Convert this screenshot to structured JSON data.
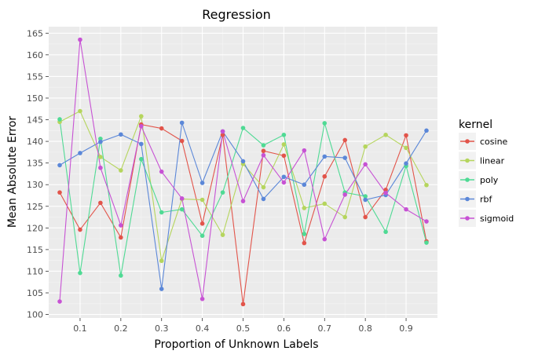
{
  "chart_data": {
    "type": "line",
    "title": "Regression",
    "xlabel": "Proportion of Unknown Labels",
    "ylabel": "Mean Absolute Error",
    "x": [
      0.05,
      0.1,
      0.15,
      0.2,
      0.25,
      0.3,
      0.35,
      0.4,
      0.45,
      0.5,
      0.55,
      0.6,
      0.65,
      0.7,
      0.75,
      0.8,
      0.85,
      0.9,
      0.95
    ],
    "x_ticks": [
      "0.1",
      "0.2",
      "0.3",
      "0.4",
      "0.5",
      "0.6",
      "0.7",
      "0.8",
      "0.9"
    ],
    "y_ticks": [
      "100",
      "105",
      "110",
      "115",
      "120",
      "125",
      "130",
      "135",
      "140",
      "145",
      "150",
      "155",
      "160",
      "165"
    ],
    "xlim": [
      0.023,
      0.977
    ],
    "ylim": [
      99.2,
      166.5
    ],
    "grid": true,
    "legend": {
      "title": "kernel",
      "position": "right"
    },
    "series": [
      {
        "name": "cosine",
        "color": "#e2544a",
        "values": [
          128.2,
          119.6,
          125.8,
          117.8,
          143.9,
          143.0,
          140.1,
          121.0,
          141.5,
          102.4,
          137.8,
          136.7,
          116.5,
          131.9,
          140.3,
          122.5,
          128.8,
          141.4,
          116.9
        ]
      },
      {
        "name": "linear",
        "color": "#b5d55d",
        "values": [
          144.5,
          147.0,
          136.4,
          133.3,
          145.8,
          112.4,
          126.7,
          126.5,
          118.4,
          134.8,
          129.4,
          139.3,
          124.6,
          125.6,
          122.5,
          138.8,
          141.5,
          138.5,
          129.9
        ]
      },
      {
        "name": "poly",
        "color": "#4fda94",
        "values": [
          145.1,
          109.6,
          140.6,
          109.0,
          135.9,
          123.6,
          124.3,
          118.2,
          128.2,
          143.1,
          139.1,
          141.5,
          118.6,
          144.2,
          128.2,
          127.3,
          119.1,
          134.3,
          116.6
        ]
      },
      {
        "name": "rbf",
        "color": "#5b87d8",
        "values": [
          134.5,
          137.3,
          139.9,
          141.6,
          139.4,
          105.9,
          144.3,
          130.4,
          142.3,
          135.4,
          126.7,
          131.8,
          130.0,
          136.5,
          136.2,
          126.5,
          127.6,
          134.9,
          142.5
        ]
      },
      {
        "name": "sigmoid",
        "color": "#c752d4",
        "values": [
          103.0,
          163.5,
          133.9,
          120.6,
          143.5,
          133.0,
          126.8,
          103.6,
          142.3,
          126.2,
          136.8,
          130.5,
          137.9,
          117.4,
          127.7,
          134.7,
          128.1,
          124.3,
          121.5
        ]
      }
    ]
  }
}
